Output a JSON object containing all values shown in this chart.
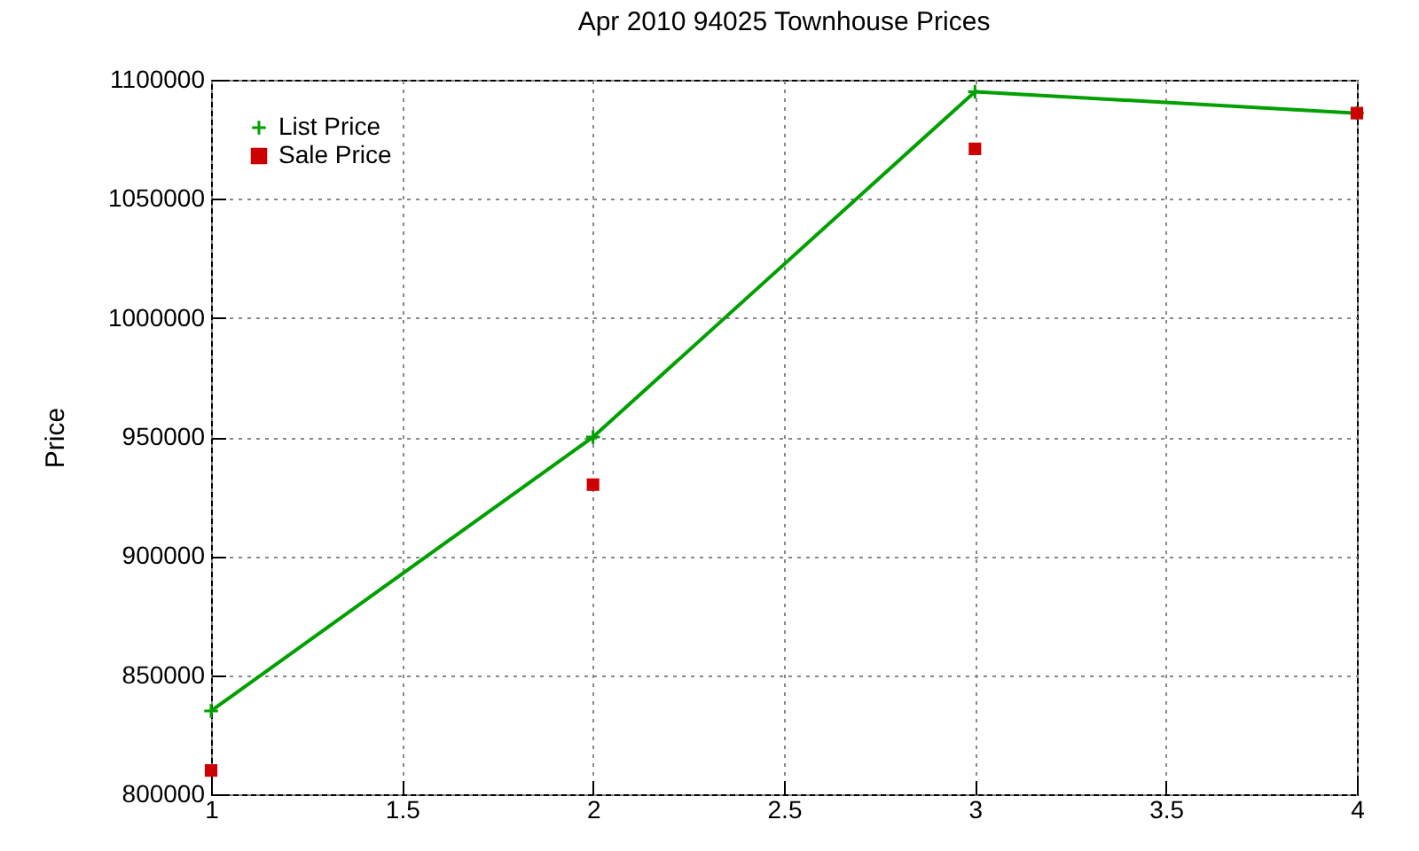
{
  "chart_data": {
    "type": "line",
    "title": "Apr 2010 94025 Townhouse Prices",
    "ylabel": "Price",
    "x": [
      1,
      2,
      3,
      4
    ],
    "series": [
      {
        "name": "List Price",
        "color": "#00a000",
        "marker": "cross",
        "values": [
          835000,
          950000,
          1095000,
          1086000
        ]
      },
      {
        "name": "Sale Price",
        "type": "scatter",
        "color": "#cc0000",
        "marker": "square",
        "values": [
          810000,
          930000,
          1071000,
          1086000
        ]
      }
    ],
    "xlim": [
      1,
      4
    ],
    "xticks": [
      1,
      1.5,
      2,
      2.5,
      3,
      3.5,
      4
    ],
    "ylim": [
      800000,
      1100000
    ],
    "yticks": [
      800000,
      850000,
      900000,
      950000,
      1000000,
      1050000,
      1100000
    ],
    "grid": true,
    "legend": "top left"
  }
}
